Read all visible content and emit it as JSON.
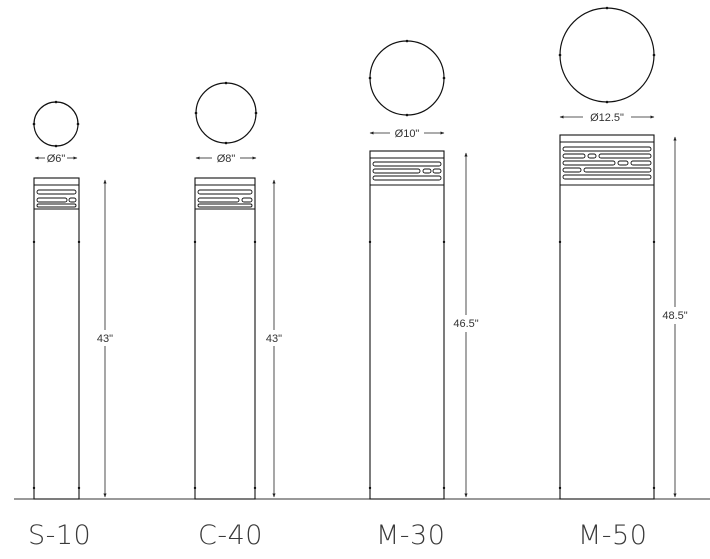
{
  "bollards": [
    {
      "model": "S-10",
      "diameter": "Ø6\"",
      "height": "43\""
    },
    {
      "model": "C-40",
      "diameter": "Ø8\"",
      "height": "43\""
    },
    {
      "model": "M-30",
      "diameter": "Ø10\"",
      "height": "46.5\""
    },
    {
      "model": "M-50",
      "diameter": "Ø12.5\"",
      "height": "48.5\""
    }
  ]
}
